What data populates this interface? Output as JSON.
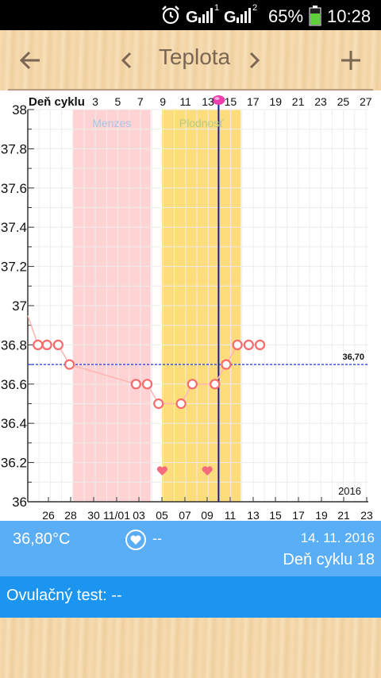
{
  "status_bar": {
    "battery_percent": "65%",
    "time": "10:28",
    "icons": [
      "alarm-icon",
      "signal-icon-1",
      "signal-icon-2",
      "battery-icon"
    ],
    "signal_labels": [
      "1",
      "2"
    ]
  },
  "header": {
    "title": "Teplota",
    "back_icon": "arrow-left-icon",
    "prev_icon": "chevron-left-icon",
    "next_icon": "chevron-right-icon",
    "add_icon": "plus-icon"
  },
  "chart_data": {
    "type": "line",
    "top_axis_label": "Deň cyklu",
    "cycle_day_ticks": [
      "3",
      "5",
      "7",
      "9",
      "11",
      "13",
      "15",
      "17",
      "19",
      "21",
      "23",
      "25",
      "27"
    ],
    "date_ticks": [
      "26",
      "28",
      "30",
      "11/01",
      "03",
      "05",
      "07",
      "09",
      "11",
      "13",
      "15",
      "17",
      "19",
      "21",
      "23"
    ],
    "y_ticks": [
      "38",
      "37.8",
      "37.6",
      "37.4",
      "37.2",
      "37",
      "36.8",
      "36.6",
      "36.4",
      "36.2",
      "36"
    ],
    "ylim": [
      36,
      38
    ],
    "year_label": "2016",
    "coverline_value": 36.7,
    "coverline_label": "36,70",
    "regions": [
      {
        "label": "Menzes",
        "from_day": 4,
        "to_day": 10.9,
        "color": "#ffd3d3",
        "label_color": "#a9c4e4"
      },
      {
        "label": "Plodnosť",
        "from_day": 11.9,
        "to_day": 18.9,
        "color": "#fddc7b",
        "label_color": "#b4cc86"
      }
    ],
    "selected_day": 17,
    "series": [
      {
        "days": [
          0.9,
          1.7,
          2.7,
          3.7,
          9.6,
          10.6,
          11.6,
          13.6,
          14.6,
          16.6,
          17.6,
          18.6,
          19.6,
          20.6
        ],
        "values": [
          36.8,
          36.8,
          36.8,
          36.7,
          36.6,
          36.6,
          36.5,
          36.5,
          36.6,
          36.6,
          36.7,
          36.8,
          36.8,
          36.8
        ],
        "line_color": "#ffb3b3",
        "marker_color": "#f76b6b"
      }
    ],
    "heart_markers": [
      {
        "day": 12.0
      },
      {
        "day": 16.0
      }
    ],
    "marker_value": 36.15
  },
  "info": {
    "temperature": "36,80°C",
    "test_value": "--",
    "date": "14. 11. 2016",
    "cycle_day": "Deň cyklu 18"
  },
  "ovulation": {
    "text": "Ovulačný test: --"
  }
}
